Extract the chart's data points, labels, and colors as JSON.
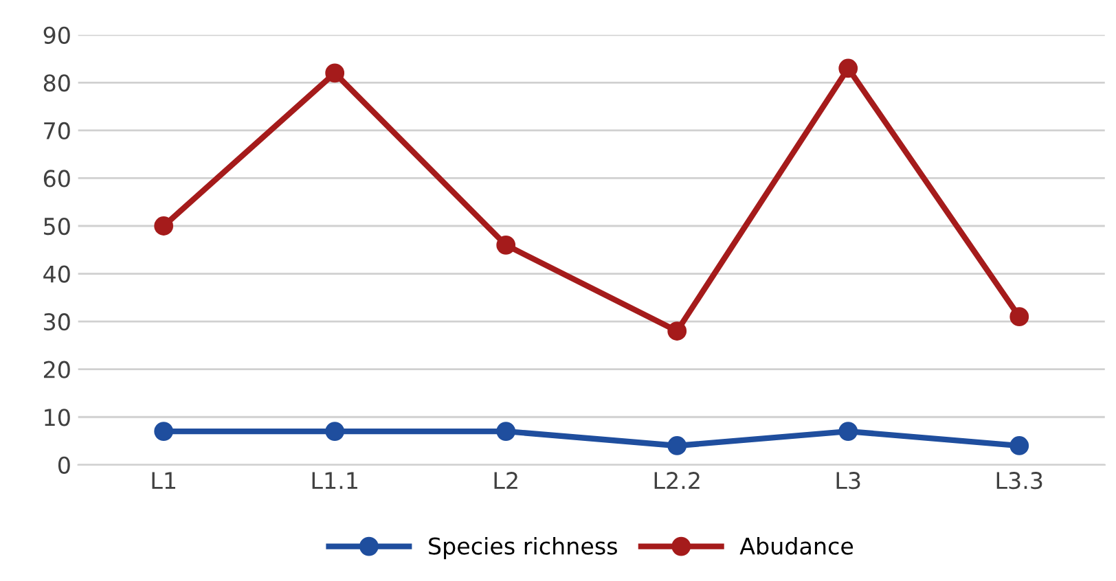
{
  "chart_data": {
    "type": "line",
    "categories": [
      "L1",
      "L1.1",
      "L2",
      "L2.2",
      "L3",
      "L3.3"
    ],
    "series": [
      {
        "name": "Species richness",
        "color": "#1f4e9e",
        "values": [
          7,
          7,
          7,
          4,
          7,
          4
        ]
      },
      {
        "name": "Abudance",
        "color": "#a51b1b",
        "values": [
          50,
          82,
          46,
          28,
          83,
          31
        ]
      }
    ],
    "ylim": [
      0,
      90
    ],
    "yticks": [
      0,
      10,
      20,
      30,
      40,
      50,
      60,
      70,
      80,
      90
    ],
    "grid": "y",
    "legend": "bottom",
    "marker": "circle",
    "line_style": "solid"
  }
}
